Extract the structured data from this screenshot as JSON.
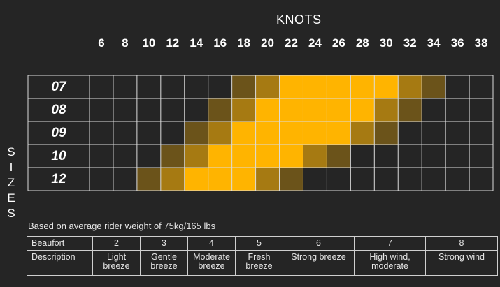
{
  "chart_data": {
    "type": "heatmap",
    "title": "KNOTS",
    "x_label": "KNOTS",
    "y_label": "SIZES",
    "knots": [
      "6",
      "8",
      "10",
      "12",
      "14",
      "16",
      "18",
      "20",
      "22",
      "24",
      "26",
      "28",
      "30",
      "32",
      "34",
      "36",
      "38"
    ],
    "sizes": [
      "07",
      "08",
      "09",
      "10",
      "12"
    ],
    "levels": [
      [
        0,
        0,
        0,
        0,
        0,
        0,
        1,
        2,
        3,
        3,
        3,
        3,
        3,
        2,
        1,
        0,
        0
      ],
      [
        0,
        0,
        0,
        0,
        0,
        1,
        2,
        3,
        3,
        3,
        3,
        3,
        2,
        1,
        0,
        0,
        0
      ],
      [
        0,
        0,
        0,
        0,
        1,
        2,
        3,
        3,
        3,
        3,
        3,
        2,
        1,
        0,
        0,
        0,
        0
      ],
      [
        0,
        0,
        0,
        1,
        2,
        3,
        3,
        3,
        3,
        2,
        1,
        0,
        0,
        0,
        0,
        0,
        0
      ],
      [
        0,
        0,
        1,
        2,
        3,
        3,
        3,
        2,
        1,
        0,
        0,
        0,
        0,
        0,
        0,
        0,
        0
      ]
    ],
    "level_colors": {
      "1": "#6b531a",
      "2": "#a67a12",
      "3": "#ffb400"
    },
    "grid_color": "#dcdcdc"
  },
  "note": "Based on average rider weight of 75kg/165 lbs",
  "beaufort": {
    "row1_label": "Beaufort",
    "row2_label": "Description",
    "numbers": [
      "2",
      "3",
      "4",
      "5",
      "6",
      "7",
      "8"
    ],
    "descriptions": [
      [
        "Light",
        "breeze"
      ],
      [
        "Gentle",
        "breeze"
      ],
      [
        "Moderate",
        "breeze"
      ],
      [
        "Fresh",
        "breeze"
      ],
      [
        "Strong breeze"
      ],
      [
        "High wind,",
        "moderate"
      ],
      [
        "Strong wind"
      ]
    ]
  }
}
